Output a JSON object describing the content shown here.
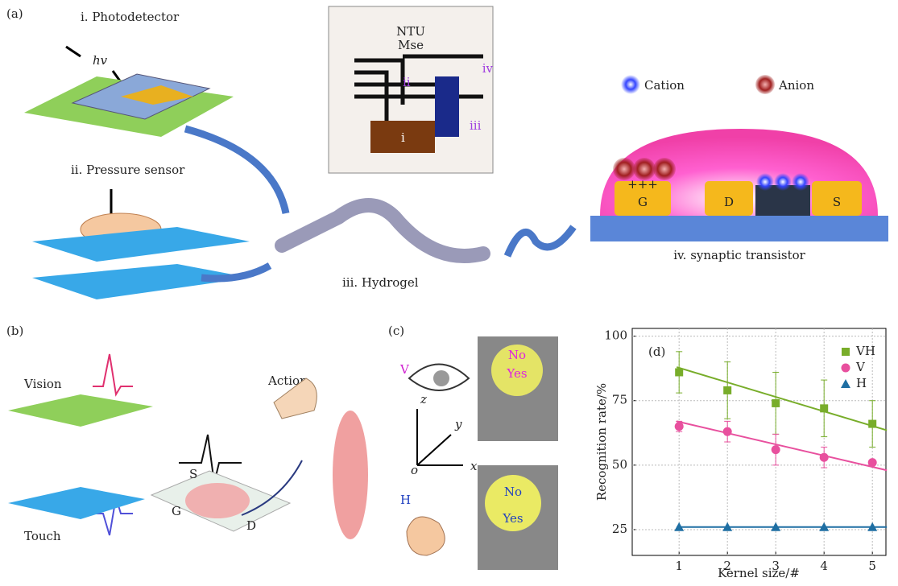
{
  "panels": {
    "a": {
      "label": "(a)",
      "photodetector": "i. Photodetector",
      "photon": "hv",
      "pressure": "ii. Pressure sensor",
      "hydrogel": "iii. Hydrogel",
      "transistor": "iv. synaptic transistor",
      "cation": "Cation",
      "anion": "Anion",
      "photo_lines": [
        "NTU",
        "Mse"
      ],
      "photo_regions": [
        "i",
        "ii",
        "iii",
        "iv"
      ],
      "charges": "+++",
      "electrodes": [
        "G",
        "D",
        "S"
      ]
    },
    "b": {
      "label": "(b)",
      "vision": "Vision",
      "touch": "Touch",
      "action": "Action",
      "electrodes": [
        "G",
        "S",
        "D"
      ]
    },
    "c": {
      "label": "(c)",
      "v": "V",
      "h": "H",
      "axes": [
        "z",
        "y",
        "x",
        "o"
      ],
      "top_words": [
        "No",
        "Yes"
      ],
      "bottom_words": [
        "No",
        "Yes"
      ]
    }
  },
  "chart_data": {
    "type": "line",
    "title": "(d)",
    "x_label": "Kernel size/#",
    "y_label": "Recognition rate/%",
    "x": [
      1,
      2,
      3,
      4,
      5
    ],
    "xlim": [
      0.03,
      5.28
    ],
    "xticks": [
      1,
      2,
      3,
      4,
      5
    ],
    "ylim": [
      15,
      103
    ],
    "yticks": [
      25,
      50,
      75,
      100
    ],
    "grid": true,
    "legend": "upper right",
    "series": [
      {
        "name": "VH",
        "color": "#78ad2a",
        "marker": "square",
        "values": [
          86,
          79,
          74,
          72,
          66
        ],
        "errors": [
          8,
          11,
          12,
          11,
          9
        ],
        "fit": {
          "x": [
            0.95,
            5.3
          ],
          "y": [
            88,
            63.5
          ]
        }
      },
      {
        "name": "V",
        "color": "#e8509e",
        "marker": "circle",
        "values": [
          65,
          63,
          56,
          53,
          51
        ],
        "errors": [
          2,
          4,
          6,
          4,
          1
        ],
        "fit": {
          "x": [
            0.95,
            5.3
          ],
          "y": [
            67,
            48
          ]
        }
      },
      {
        "name": "H",
        "color": "#1f6fa3",
        "marker": "triangle",
        "values": [
          26,
          26,
          26,
          26,
          26
        ],
        "errors": [
          0,
          0,
          0,
          0,
          0
        ],
        "fit": {
          "x": [
            0.95,
            5.3
          ],
          "y": [
            26,
            26
          ]
        }
      }
    ]
  }
}
